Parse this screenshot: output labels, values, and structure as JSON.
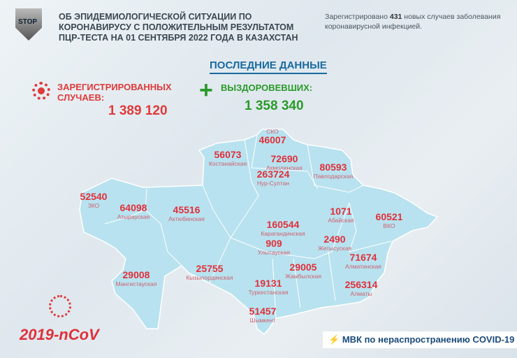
{
  "header": {
    "title_lines": [
      "ОБ ЭПИДЕМИОЛОГИЧЕСКОЙ СИТУАЦИИ ПО",
      "КОРОНАВИРУСУ С ПОЛОЖИТЕЛЬНЫМ РЕЗУЛЬТАТОМ",
      "ПЦР-ТЕСТА НА 01 СЕНТЯБРЯ 2022 ГОДА В КАЗАХСТАН"
    ],
    "logo_text": "STOP",
    "note_prefix": "Зарегистрировано ",
    "note_count": "431",
    "note_suffix": " новых случаев заболевания коронавирусной инфекцией."
  },
  "latest": {
    "heading": "ПОСЛЕДНИЕ ДАННЫЕ",
    "registered_label_1": "ЗАРЕГИСТРИРОВАННЫХ",
    "registered_label_2": "СЛУЧАЕВ:",
    "registered_value": "1 389 120",
    "recovered_label": "ВЫЗДОРОВЕВШИХ:",
    "recovered_value": "1 358 340"
  },
  "colors": {
    "red": "#e0303a",
    "green": "#2a9a2a",
    "map": "#b8e2ef",
    "heading": "#1a6aa0"
  },
  "regions": [
    {
      "value": "46007",
      "name": "СКО"
    },
    {
      "value": "56073",
      "name": "Костанайская"
    },
    {
      "value": "72690",
      "name": "Акмолинская"
    },
    {
      "value": "80593",
      "name": "Павлодарская"
    },
    {
      "value": "263724",
      "name": "Нур-Султан"
    },
    {
      "value": "52540",
      "name": "ЗКО"
    },
    {
      "value": "45516",
      "name": "Актюбинская"
    },
    {
      "value": "64098",
      "name": "Атырауская"
    },
    {
      "value": "160544",
      "name": "Карагандинская"
    },
    {
      "value": "1071",
      "name": "Абайская"
    },
    {
      "value": "60521",
      "name": "ВКО"
    },
    {
      "value": "909",
      "name": "Улытауская"
    },
    {
      "value": "2490",
      "name": "Жетысуская"
    },
    {
      "value": "25755",
      "name": "Кызылординская"
    },
    {
      "value": "29008",
      "name": "Мангистауская"
    },
    {
      "value": "29005",
      "name": "Жамбылская"
    },
    {
      "value": "71674",
      "name": "Алматинская"
    },
    {
      "value": "19131",
      "name": "Туркестанская"
    },
    {
      "value": "256314",
      "name": "Алматы"
    },
    {
      "value": "51457",
      "name": "Шымкент"
    }
  ],
  "footer": {
    "ncov": "2019-nCoV",
    "mvk": "МВК по нераспространению COVID-19"
  }
}
